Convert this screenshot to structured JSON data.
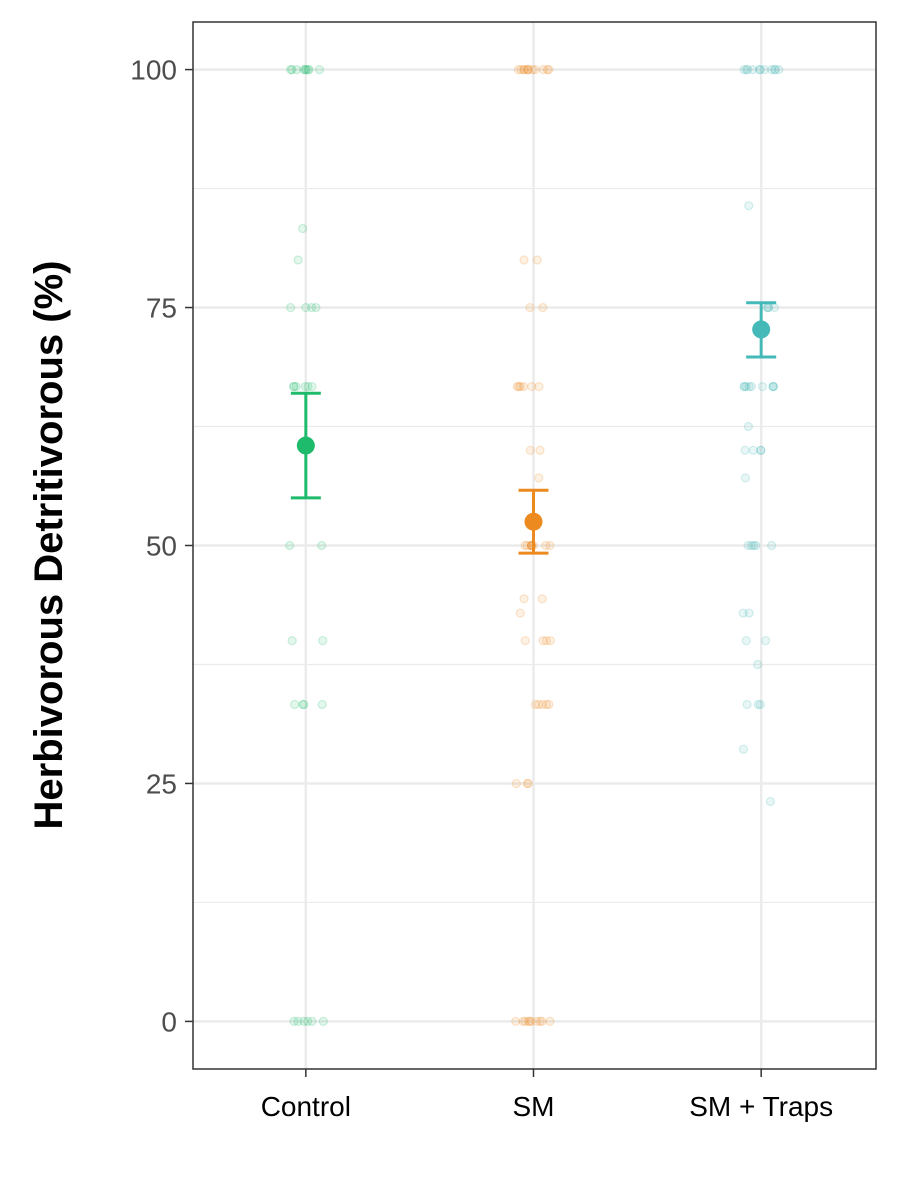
{
  "chart_data": {
    "type": "scatter",
    "title": "",
    "xlabel": "",
    "ylabel": "Herbivorous Detritivorous (%)",
    "categories": [
      "Control",
      "SM",
      "SM + Traps"
    ],
    "ylim": [
      -5,
      105
    ],
    "yticks": [
      0,
      25,
      50,
      75,
      100
    ],
    "grid": true,
    "legend": "none",
    "colors": [
      "#1dbb6b",
      "#ec8a1f",
      "#45b8b8"
    ],
    "summary": [
      {
        "category": "Control",
        "mean": 60.5,
        "lower": 55.0,
        "upper": 66.0
      },
      {
        "category": "SM",
        "mean": 52.5,
        "lower": 49.2,
        "upper": 55.8
      },
      {
        "category": "SM + Traps",
        "mean": 72.7,
        "lower": 69.8,
        "upper": 75.5
      }
    ],
    "points": [
      {
        "category": "Control",
        "values": [
          100,
          100,
          100,
          100,
          100,
          100,
          100,
          100,
          100,
          83.3,
          80,
          75,
          75,
          75,
          75,
          66.7,
          66.7,
          66.7,
          66.7,
          66.7,
          66.7,
          50,
          50,
          40,
          40,
          33.3,
          33.3,
          33.3,
          33.3,
          0,
          0,
          0,
          0,
          0,
          0
        ]
      },
      {
        "category": "SM",
        "values": [
          100,
          100,
          100,
          100,
          100,
          100,
          100,
          100,
          100,
          100,
          100,
          100,
          80,
          80,
          75,
          75,
          66.7,
          66.7,
          66.7,
          66.7,
          66.7,
          66.7,
          60,
          60,
          57.1,
          50,
          50,
          50,
          50,
          50,
          50,
          50,
          50,
          50,
          44.4,
          44.4,
          42.9,
          40,
          40,
          40,
          40,
          33.3,
          33.3,
          33.3,
          33.3,
          33.3,
          25,
          25,
          25,
          0,
          0,
          0,
          0,
          0,
          0,
          0,
          0,
          0,
          0
        ]
      },
      {
        "category": "SM + Traps",
        "values": [
          100,
          100,
          100,
          100,
          100,
          100,
          100,
          100,
          100,
          100,
          100,
          85.7,
          75,
          75,
          75,
          75,
          66.7,
          66.7,
          66.7,
          66.7,
          66.7,
          66.7,
          66.7,
          66.7,
          66.7,
          62.5,
          60,
          60,
          60,
          60,
          57.1,
          50,
          50,
          50,
          50,
          50,
          42.9,
          42.9,
          40,
          40,
          37.5,
          33.3,
          33.3,
          33.3,
          28.6,
          23.1
        ]
      }
    ]
  }
}
